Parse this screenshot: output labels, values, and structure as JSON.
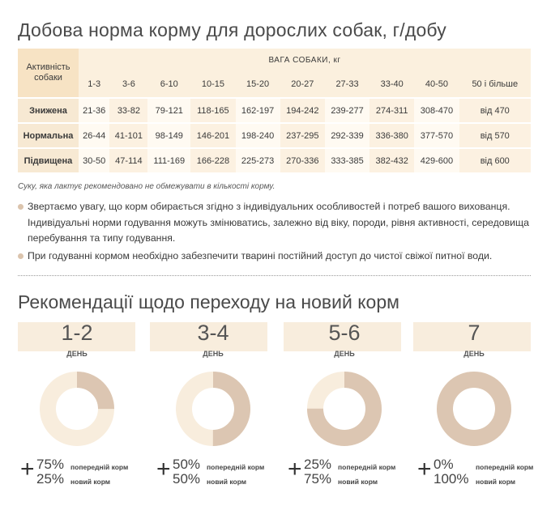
{
  "section1_title": "Добова норма корму для дорослих собак, г/добу",
  "table": {
    "activity_header": "Активність собаки",
    "weight_header": "ВАГА СОБАКИ, кг",
    "ranges": [
      "1-3",
      "3-6",
      "6-10",
      "10-15",
      "15-20",
      "20-27",
      "27-33",
      "33-40",
      "40-50",
      "50 і більше"
    ],
    "rows": [
      {
        "label": "Знижена",
        "values": [
          "21-36",
          "33-82",
          "79-121",
          "118-165",
          "162-197",
          "194-242",
          "239-277",
          "274-311",
          "308-470",
          "від 470"
        ]
      },
      {
        "label": "Нормальна",
        "values": [
          "26-44",
          "41-101",
          "98-149",
          "146-201",
          "198-240",
          "237-295",
          "292-339",
          "336-380",
          "377-570",
          "від 570"
        ]
      },
      {
        "label": "Підвищена",
        "values": [
          "30-50",
          "47-114",
          "111-169",
          "166-228",
          "225-273",
          "270-336",
          "333-385",
          "382-432",
          "429-600",
          "від 600"
        ]
      }
    ]
  },
  "note": "Суку, яка лактує рекомендовано не обмежувати в кількості корму.",
  "bullets": [
    "Звертаємо увагу, що корм обирається згідно з індивідуальних особливостей і потреб вашого вихованця. Індивідуальні норми годування можуть змінюватись, залежно від віку, породи, рівня активності, середовища перебування та типу годування.",
    "При годуванні кормом необхідно забезпечити тварині постійний доступ до чистої свіжої питної води."
  ],
  "section2_title": "Рекомендації щодо переходу на новий корм",
  "transition": {
    "day_word": "ДЕНЬ",
    "prev_label": "попередній корм",
    "new_label": "новий корм",
    "stages": [
      {
        "day": "1-2",
        "prev": "75%",
        "new": "25%",
        "new_fraction": 0.25
      },
      {
        "day": "3-4",
        "prev": "50%",
        "new": "50%",
        "new_fraction": 0.5
      },
      {
        "day": "5-6",
        "prev": "25%",
        "new": "75%",
        "new_fraction": 0.75
      },
      {
        "day": "7",
        "prev": "0%",
        "new": "100%",
        "new_fraction": 1.0
      }
    ],
    "colors": {
      "prev": "#f8eddd",
      "new": "#dcc6b2"
    }
  }
}
